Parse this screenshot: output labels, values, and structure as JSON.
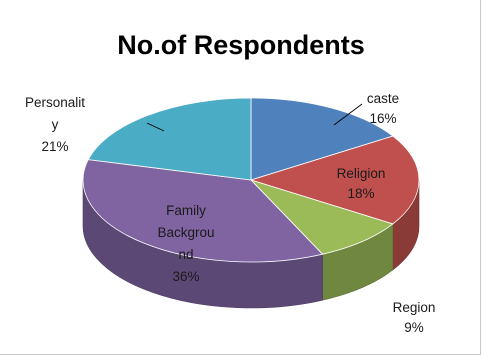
{
  "chart_data": {
    "type": "pie",
    "title": "No.of Respondents",
    "style": "3d",
    "legend": "none",
    "slices": [
      {
        "name": "caste",
        "percent": 16,
        "label_lines": [
          "caste",
          "16%"
        ],
        "color": "#4f81bd"
      },
      {
        "name": "Religion",
        "percent": 18,
        "label_lines": [
          "Religion",
          "18%"
        ],
        "color": "#c0504d"
      },
      {
        "name": "Region",
        "percent": 9,
        "label_lines": [
          "Region",
          "9%"
        ],
        "color": "#9bbb59"
      },
      {
        "name": "Family Backgroud",
        "percent": 36,
        "label_lines": [
          "Family",
          "Backgrou",
          "nd",
          "36%"
        ],
        "color": "#8064a2"
      },
      {
        "name": "Personality",
        "percent": 21,
        "label_lines": [
          "Personalit",
          "y",
          "21%"
        ],
        "color": "#4bacc6"
      }
    ]
  }
}
